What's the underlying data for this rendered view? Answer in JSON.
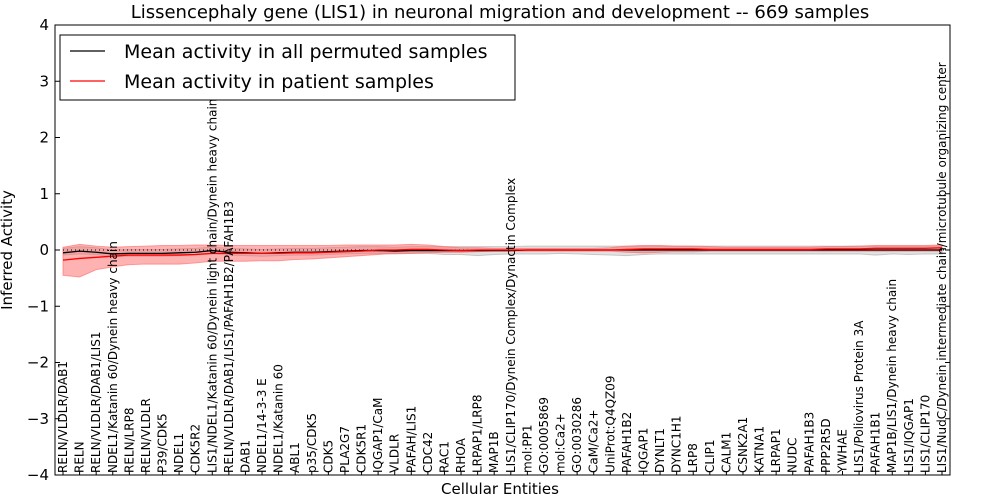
{
  "chart_data": {
    "type": "line",
    "title": "Lissencephaly gene (LIS1) in neuronal migration and development -- 669 samples",
    "xlabel": "Cellular Entities",
    "ylabel": "Inferred Activity",
    "ylim": [
      -4,
      4
    ],
    "yticks": [
      4,
      3,
      2,
      1,
      0,
      -1,
      -2,
      -3,
      -4
    ],
    "ytick_labels": [
      "4",
      "3",
      "2",
      "1",
      "0",
      "−1",
      "−2",
      "−3",
      "−4"
    ],
    "legend_position": "top-left",
    "legend": [
      "Mean activity in all permuted samples",
      "Mean activity in patient samples"
    ],
    "zero_reference_line": "dotted",
    "categories": [
      "RELN/VLDLR/DAB1",
      "RELN",
      "RELN/VLDLR/DAB1/LIS1",
      "NDEL1/Katanin 60/Dynein heavy chain",
      "RELN/LRP8",
      "RELN/VLDLR",
      "P39/CDK5",
      "NDEL1",
      "CDK5R2",
      "LIS1/NDEL1/Katanin 60/Dynein light chain/Dynein heavy chain",
      "RELN/VLDLR/DAB1/LIS1/PAFAH1B2/PAFAH1B3",
      "DAB1",
      "NDEL1/14-3-3 E",
      "NDEL1/Katanin 60",
      "ABL1",
      "p35/CDK5",
      "CDK5",
      "PLA2G7",
      "CDK5R1",
      "IQGAP1/CaM",
      "VLDLR",
      "PAFAH/LIS1",
      "CDC42",
      "RAC1",
      "RHOA",
      "LRPAP1/LRP8",
      "MAP1B",
      "LIS1/CLIP170/Dynein Complex/Dynactin Complex",
      "mol:PP1",
      "GO:0005869",
      "mol:Ca2+",
      "GO:0030286",
      "CaM/Ca2+",
      "UniProt:Q4QZ09",
      "PAFAH1B2",
      "IQGAP1",
      "DYNLT1",
      "DYNC1H1",
      "LRP8",
      "CLIP1",
      "CALM1",
      "CSNK2A1",
      "KATNA1",
      "LRPAP1",
      "NUDC",
      "PAFAH1B3",
      "PPP2R5D",
      "YWHAE",
      "LIS1/Poliovirus Protein 3A",
      "PAFAH1B1",
      "MAP1B/LIS1/Dynein heavy chain",
      "LIS1/IQGAP1",
      "LIS1/CLIP170",
      "LIS1/NudC/Dynein intermediate chain/microtubule organizing center"
    ],
    "series": [
      {
        "name": "Mean activity in all permuted samples",
        "color": "#000000",
        "values": [
          -0.05,
          -0.02,
          -0.04,
          -0.07,
          -0.06,
          -0.06,
          -0.06,
          -0.05,
          -0.04,
          -0.01,
          -0.04,
          -0.05,
          -0.06,
          -0.05,
          -0.04,
          -0.04,
          -0.03,
          -0.02,
          -0.01,
          -0.01,
          -0.02,
          -0.01,
          -0.01,
          -0.01,
          -0.01,
          -0.01,
          -0.01,
          -0.01,
          0,
          0,
          0,
          0,
          0,
          0,
          0,
          0,
          0,
          0,
          0,
          0,
          0,
          0,
          0,
          0,
          0,
          0,
          0,
          0,
          0,
          0,
          0,
          0,
          0,
          0
        ],
        "band_lower": [
          -0.09,
          -0.07,
          -0.08,
          -0.12,
          -0.11,
          -0.11,
          -0.11,
          -0.1,
          -0.09,
          -0.07,
          -0.09,
          -0.1,
          -0.11,
          -0.1,
          -0.09,
          -0.09,
          -0.08,
          -0.07,
          -0.06,
          -0.06,
          -0.07,
          -0.06,
          -0.06,
          -0.08,
          -0.08,
          -0.1,
          -0.08,
          -0.07,
          -0.07,
          -0.07,
          -0.06,
          -0.07,
          -0.08,
          -0.09,
          -0.1,
          -0.08,
          -0.07,
          -0.07,
          -0.07,
          -0.07,
          -0.07,
          -0.07,
          -0.07,
          -0.07,
          -0.07,
          -0.07,
          -0.07,
          -0.07,
          -0.07,
          -0.09,
          -0.07,
          -0.08,
          -0.07,
          -0.07
        ],
        "band_upper": [
          0.03,
          0.06,
          0.04,
          0.0,
          0.01,
          0.01,
          0.01,
          0.02,
          0.03,
          0.05,
          0.03,
          0.02,
          0.01,
          0.02,
          0.03,
          0.03,
          0.04,
          0.05,
          0.06,
          0.06,
          0.05,
          0.06,
          0.06,
          0.06,
          0.06,
          0.06,
          0.06,
          0.06,
          0.07,
          0.07,
          0.07,
          0.07,
          0.07,
          0.07,
          0.07,
          0.07,
          0.07,
          0.07,
          0.07,
          0.07,
          0.07,
          0.07,
          0.07,
          0.07,
          0.07,
          0.07,
          0.07,
          0.07,
          0.07,
          0.07,
          0.07,
          0.07,
          0.07,
          0.07
        ],
        "band_color": "#aaaaaa"
      },
      {
        "name": "Mean activity in patient samples",
        "color": "#ff0000",
        "values": [
          -0.18,
          -0.15,
          -0.13,
          -0.11,
          -0.09,
          -0.09,
          -0.09,
          -0.09,
          -0.08,
          -0.06,
          -0.06,
          -0.06,
          -0.06,
          -0.06,
          -0.05,
          -0.05,
          -0.04,
          -0.03,
          -0.02,
          0.0,
          0.0,
          0.01,
          0.01,
          0.0,
          -0.01,
          0.0,
          0.0,
          0.0,
          0.0,
          0.0,
          0.0,
          0.0,
          0.0,
          0.0,
          0.01,
          0.02,
          0.02,
          0.02,
          0.02,
          0.01,
          0.01,
          0.01,
          0.01,
          0.01,
          0.01,
          0.01,
          0.02,
          0.02,
          0.02,
          0.03,
          0.03,
          0.03,
          0.03,
          0.04
        ],
        "band_lower": [
          -0.45,
          -0.48,
          -0.35,
          -0.3,
          -0.26,
          -0.25,
          -0.25,
          -0.25,
          -0.23,
          -0.2,
          -0.2,
          -0.2,
          -0.19,
          -0.19,
          -0.17,
          -0.16,
          -0.14,
          -0.12,
          -0.1,
          -0.08,
          -0.06,
          -0.06,
          -0.05,
          -0.04,
          -0.04,
          -0.03,
          -0.02,
          -0.02,
          -0.02,
          -0.02,
          -0.02,
          -0.02,
          -0.02,
          -0.02,
          -0.04,
          -0.05,
          -0.04,
          -0.03,
          -0.03,
          -0.02,
          -0.02,
          -0.02,
          -0.02,
          -0.02,
          -0.02,
          -0.02,
          -0.02,
          -0.02,
          -0.02,
          -0.02,
          -0.02,
          -0.02,
          -0.02,
          -0.02
        ],
        "band_upper": [
          0.05,
          0.1,
          0.07,
          0.05,
          0.06,
          0.07,
          0.08,
          0.08,
          0.09,
          0.09,
          0.08,
          0.08,
          0.08,
          0.08,
          0.08,
          0.08,
          0.08,
          0.09,
          0.09,
          0.09,
          0.09,
          0.1,
          0.09,
          0.06,
          0.04,
          0.04,
          0.03,
          0.03,
          0.03,
          0.03,
          0.03,
          0.03,
          0.03,
          0.04,
          0.07,
          0.08,
          0.08,
          0.07,
          0.07,
          0.06,
          0.05,
          0.05,
          0.05,
          0.05,
          0.05,
          0.05,
          0.06,
          0.06,
          0.07,
          0.08,
          0.08,
          0.08,
          0.08,
          0.09
        ],
        "band_color": "#ff6666"
      }
    ]
  }
}
